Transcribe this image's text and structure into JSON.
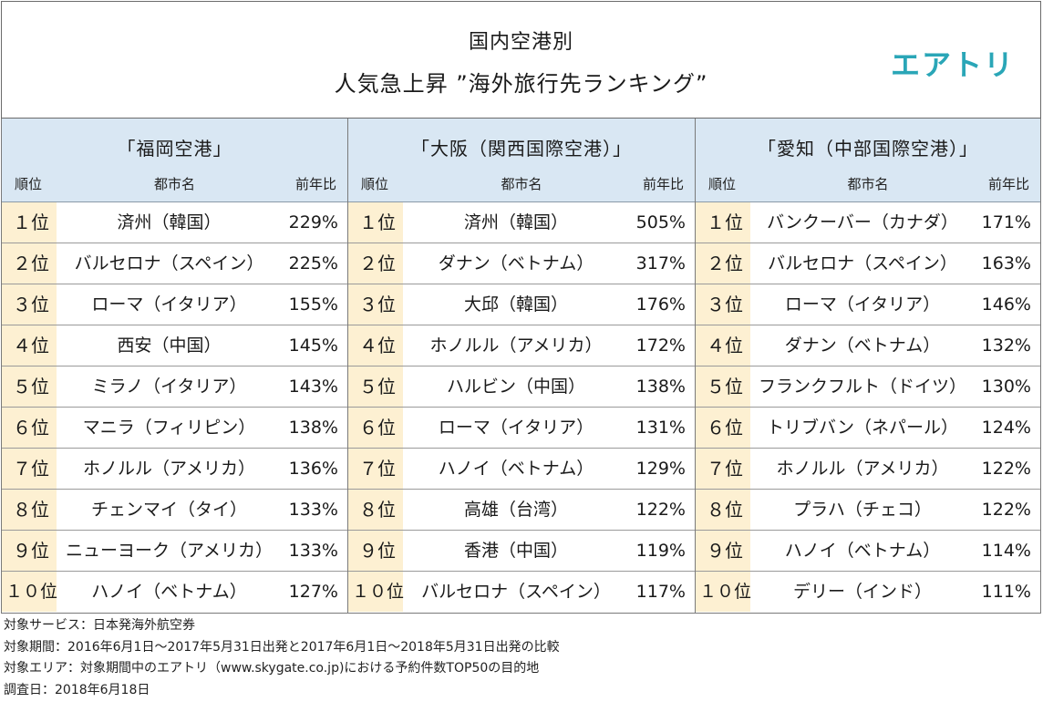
{
  "header": {
    "line1": "国内空港別",
    "line2": "人気急上昇 ”海外旅行先ランキング”",
    "logo": "エアトリ"
  },
  "colors": {
    "header_bg": "#d9e7f3",
    "rank_bg": "#fdf0d2",
    "logo": "#2aa6b7"
  },
  "chart_data": {
    "type": "table",
    "columns": [
      "順位",
      "都市名",
      "前年比"
    ],
    "tables": [
      {
        "airport": "「福岡空港」",
        "rows": [
          {
            "rank": "１位",
            "city": "済州（韓国）",
            "ratio": "229%"
          },
          {
            "rank": "２位",
            "city": "バルセロナ（スペイン）",
            "ratio": "225%"
          },
          {
            "rank": "３位",
            "city": "ローマ（イタリア）",
            "ratio": "155%"
          },
          {
            "rank": "４位",
            "city": "西安（中国）",
            "ratio": "145%"
          },
          {
            "rank": "５位",
            "city": "ミラノ（イタリア）",
            "ratio": "143%"
          },
          {
            "rank": "６位",
            "city": "マニラ（フィリピン）",
            "ratio": "138%"
          },
          {
            "rank": "７位",
            "city": "ホノルル（アメリカ）",
            "ratio": "136%"
          },
          {
            "rank": "８位",
            "city": "チェンマイ（タイ）",
            "ratio": "133%"
          },
          {
            "rank": "９位",
            "city": "ニューヨーク（アメリカ）",
            "ratio": "133%"
          },
          {
            "rank": "１０位",
            "city": "ハノイ（ベトナム）",
            "ratio": "127%"
          }
        ]
      },
      {
        "airport": "「大阪（関西国際空港）」",
        "rows": [
          {
            "rank": "１位",
            "city": "済州（韓国）",
            "ratio": "505%"
          },
          {
            "rank": "２位",
            "city": "ダナン（ベトナム）",
            "ratio": "317%"
          },
          {
            "rank": "３位",
            "city": "大邱（韓国）",
            "ratio": "176%"
          },
          {
            "rank": "４位",
            "city": "ホノルル（アメリカ）",
            "ratio": "172%"
          },
          {
            "rank": "５位",
            "city": "ハルビン（中国）",
            "ratio": "138%"
          },
          {
            "rank": "６位",
            "city": "ローマ（イタリア）",
            "ratio": "131%"
          },
          {
            "rank": "７位",
            "city": "ハノイ（ベトナム）",
            "ratio": "129%"
          },
          {
            "rank": "８位",
            "city": "高雄（台湾）",
            "ratio": "122%"
          },
          {
            "rank": "９位",
            "city": "香港（中国）",
            "ratio": "119%"
          },
          {
            "rank": "１０位",
            "city": "バルセロナ（スペイン）",
            "ratio": "117%"
          }
        ]
      },
      {
        "airport": "「愛知（中部国際空港）」",
        "rows": [
          {
            "rank": "１位",
            "city": "バンクーバー（カナダ）",
            "ratio": "171%"
          },
          {
            "rank": "２位",
            "city": "バルセロナ（スペイン）",
            "ratio": "163%"
          },
          {
            "rank": "３位",
            "city": "ローマ（イタリア）",
            "ratio": "146%"
          },
          {
            "rank": "４位",
            "city": "ダナン（ベトナム）",
            "ratio": "132%"
          },
          {
            "rank": "５位",
            "city": "フランクフルト（ドイツ）",
            "ratio": "130%"
          },
          {
            "rank": "６位",
            "city": "トリブバン（ネパール）",
            "ratio": "124%"
          },
          {
            "rank": "７位",
            "city": "ホノルル（アメリカ）",
            "ratio": "122%"
          },
          {
            "rank": "８位",
            "city": "プラハ（チェコ）",
            "ratio": "122%"
          },
          {
            "rank": "９位",
            "city": "ハノイ（ベトナム）",
            "ratio": "114%"
          },
          {
            "rank": "１０位",
            "city": "デリー（インド）",
            "ratio": "111%"
          }
        ]
      }
    ]
  },
  "notes": [
    "対象サービス：日本発海外航空券",
    "対象期間：2016年6月1日～2017年5月31日出発と2017年6月1日～2018年5月31日出発の比較",
    "対象エリア：対象期間中のエアトリ（www.skygate.co.jp)における予約件数TOP50の目的地",
    "調査日：2018年6月18日"
  ]
}
